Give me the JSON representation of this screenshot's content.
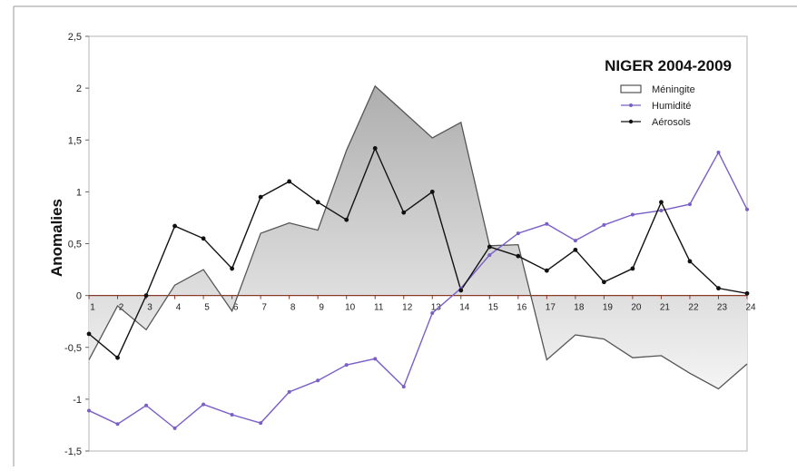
{
  "chart_data": {
    "type": "line",
    "title": "NIGER 2004-2009",
    "ylabel": "Anomalies",
    "xlabel": "",
    "ylim": [
      -1.5,
      2.5
    ],
    "yticks": [
      "2,5",
      "2",
      "1,5",
      "1",
      "0,5",
      "0",
      "-0,5",
      "-1",
      "-1,5"
    ],
    "ytick_values": [
      2.5,
      2,
      1.5,
      1,
      0.5,
      0,
      -0.5,
      -1,
      -1.5
    ],
    "x": [
      1,
      2,
      3,
      4,
      5,
      6,
      7,
      8,
      9,
      10,
      11,
      12,
      13,
      14,
      15,
      16,
      17,
      18,
      19,
      20,
      21,
      22,
      23,
      24
    ],
    "grid": false,
    "legend_position": "top-right",
    "series": [
      {
        "name": "Méningite",
        "style": "area",
        "color": "#555555",
        "values": [
          -0.62,
          -0.1,
          -0.33,
          0.1,
          0.25,
          -0.15,
          0.6,
          0.7,
          0.63,
          1.4,
          2.02,
          1.77,
          1.52,
          1.67,
          0.48,
          0.49,
          -0.62,
          -0.38,
          -0.42,
          -0.6,
          -0.58,
          -0.75,
          -0.9,
          -0.66
        ]
      },
      {
        "name": "Humidité",
        "style": "line",
        "color": "#7a5fc7",
        "values": [
          -1.11,
          -1.24,
          -1.06,
          -1.28,
          -1.05,
          -1.15,
          -1.23,
          -0.93,
          -0.82,
          -0.67,
          -0.61,
          -0.88,
          -0.17,
          0.07,
          0.39,
          0.6,
          0.69,
          0.53,
          0.68,
          0.78,
          0.82,
          0.88,
          1.38,
          0.83
        ]
      },
      {
        "name": "Aérosols",
        "style": "line",
        "color": "#111111",
        "values": [
          -0.37,
          -0.6,
          0.0,
          0.67,
          0.55,
          0.26,
          0.95,
          1.1,
          0.9,
          0.73,
          1.42,
          0.8,
          1.0,
          0.05,
          0.47,
          0.38,
          0.24,
          0.44,
          0.13,
          0.26,
          0.9,
          0.33,
          0.07,
          0.02
        ]
      }
    ]
  }
}
